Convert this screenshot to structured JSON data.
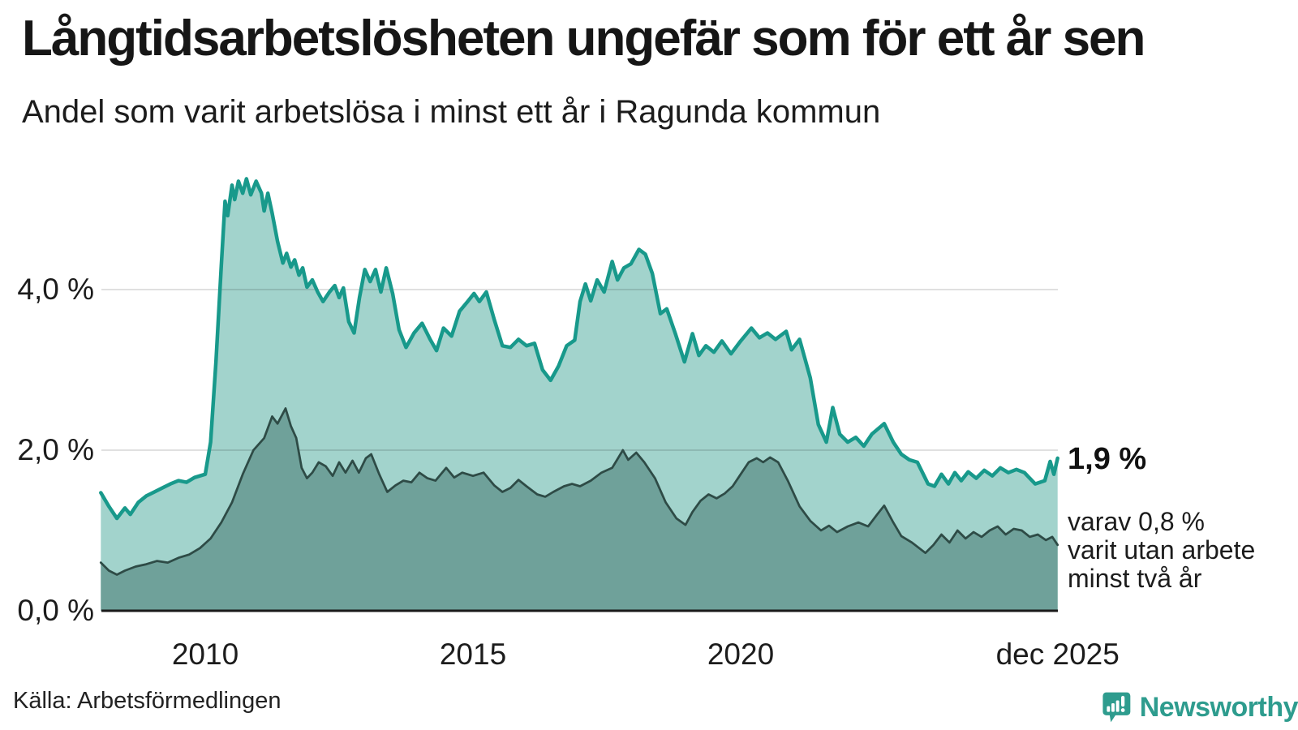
{
  "header": {
    "title": "Långtidsarbetslösheten ungefär som för ett år sen",
    "subtitle": "Andel som varit arbetslösa i minst ett år i Ragunda kommun"
  },
  "chart_data": {
    "type": "area",
    "title": "Långtidsarbetslösheten ungefär som för ett år sen",
    "subtitle": "Andel som varit arbetslösa i minst ett år i Ragunda kommun",
    "unit": "%",
    "x_axis": {
      "range": [
        2008.05,
        2025.92
      ],
      "ticks": [
        {
          "label": "2010",
          "t": 2010
        },
        {
          "label": "2015",
          "t": 2015
        },
        {
          "label": "2020",
          "t": 2020
        },
        {
          "label": "dec 2025",
          "t": 2025.92
        }
      ]
    },
    "y_axis": {
      "range": [
        0,
        5.6
      ],
      "grid": true,
      "ticks": [
        {
          "label": "0,0 %",
          "value": 0
        },
        {
          "label": "2,0 %",
          "value": 2
        },
        {
          "label": "4,0 %",
          "value": 4
        }
      ]
    },
    "series": [
      {
        "name": "Andel som varit arbetslösa i minst ett år",
        "fill": "#a2d3cc",
        "stroke": "#18998b",
        "stroke_width": 4.5,
        "latest_value": 1.9,
        "points": [
          [
            2008.05,
            1.47
          ],
          [
            2008.2,
            1.3
          ],
          [
            2008.35,
            1.15
          ],
          [
            2008.5,
            1.28
          ],
          [
            2008.6,
            1.2
          ],
          [
            2008.75,
            1.35
          ],
          [
            2008.9,
            1.43
          ],
          [
            2009.05,
            1.48
          ],
          [
            2009.2,
            1.53
          ],
          [
            2009.35,
            1.58
          ],
          [
            2009.5,
            1.62
          ],
          [
            2009.65,
            1.6
          ],
          [
            2009.8,
            1.66
          ],
          [
            2010.0,
            1.7
          ],
          [
            2010.1,
            2.1
          ],
          [
            2010.2,
            3.1
          ],
          [
            2010.3,
            4.3
          ],
          [
            2010.37,
            5.1
          ],
          [
            2010.42,
            4.92
          ],
          [
            2010.5,
            5.3
          ],
          [
            2010.55,
            5.12
          ],
          [
            2010.62,
            5.35
          ],
          [
            2010.7,
            5.2
          ],
          [
            2010.77,
            5.38
          ],
          [
            2010.85,
            5.18
          ],
          [
            2010.95,
            5.35
          ],
          [
            2011.05,
            5.2
          ],
          [
            2011.1,
            4.98
          ],
          [
            2011.17,
            5.2
          ],
          [
            2011.25,
            4.95
          ],
          [
            2011.35,
            4.6
          ],
          [
            2011.45,
            4.33
          ],
          [
            2011.52,
            4.45
          ],
          [
            2011.6,
            4.28
          ],
          [
            2011.67,
            4.37
          ],
          [
            2011.75,
            4.18
          ],
          [
            2011.82,
            4.27
          ],
          [
            2011.9,
            4.03
          ],
          [
            2012.0,
            4.12
          ],
          [
            2012.1,
            3.97
          ],
          [
            2012.2,
            3.85
          ],
          [
            2012.32,
            3.97
          ],
          [
            2012.42,
            4.05
          ],
          [
            2012.5,
            3.9
          ],
          [
            2012.58,
            4.02
          ],
          [
            2012.68,
            3.6
          ],
          [
            2012.78,
            3.46
          ],
          [
            2012.88,
            3.9
          ],
          [
            2012.98,
            4.25
          ],
          [
            2013.08,
            4.1
          ],
          [
            2013.18,
            4.25
          ],
          [
            2013.28,
            3.97
          ],
          [
            2013.38,
            4.27
          ],
          [
            2013.5,
            3.95
          ],
          [
            2013.62,
            3.5
          ],
          [
            2013.75,
            3.28
          ],
          [
            2013.9,
            3.46
          ],
          [
            2014.05,
            3.58
          ],
          [
            2014.2,
            3.38
          ],
          [
            2014.32,
            3.24
          ],
          [
            2014.45,
            3.52
          ],
          [
            2014.6,
            3.42
          ],
          [
            2014.75,
            3.73
          ],
          [
            2014.9,
            3.85
          ],
          [
            2015.02,
            3.95
          ],
          [
            2015.12,
            3.85
          ],
          [
            2015.25,
            3.97
          ],
          [
            2015.4,
            3.62
          ],
          [
            2015.55,
            3.3
          ],
          [
            2015.7,
            3.28
          ],
          [
            2015.85,
            3.38
          ],
          [
            2016.0,
            3.3
          ],
          [
            2016.15,
            3.33
          ],
          [
            2016.3,
            3.0
          ],
          [
            2016.45,
            2.87
          ],
          [
            2016.6,
            3.05
          ],
          [
            2016.75,
            3.3
          ],
          [
            2016.9,
            3.37
          ],
          [
            2017.0,
            3.85
          ],
          [
            2017.1,
            4.07
          ],
          [
            2017.2,
            3.86
          ],
          [
            2017.32,
            4.12
          ],
          [
            2017.45,
            3.97
          ],
          [
            2017.6,
            4.35
          ],
          [
            2017.7,
            4.12
          ],
          [
            2017.82,
            4.27
          ],
          [
            2017.95,
            4.32
          ],
          [
            2018.1,
            4.5
          ],
          [
            2018.22,
            4.44
          ],
          [
            2018.35,
            4.2
          ],
          [
            2018.5,
            3.7
          ],
          [
            2018.62,
            3.76
          ],
          [
            2018.78,
            3.45
          ],
          [
            2018.95,
            3.1
          ],
          [
            2019.1,
            3.45
          ],
          [
            2019.22,
            3.18
          ],
          [
            2019.35,
            3.3
          ],
          [
            2019.5,
            3.22
          ],
          [
            2019.65,
            3.36
          ],
          [
            2019.82,
            3.2
          ],
          [
            2020.0,
            3.36
          ],
          [
            2020.2,
            3.52
          ],
          [
            2020.35,
            3.4
          ],
          [
            2020.5,
            3.46
          ],
          [
            2020.65,
            3.38
          ],
          [
            2020.85,
            3.48
          ],
          [
            2020.95,
            3.25
          ],
          [
            2021.1,
            3.38
          ],
          [
            2021.3,
            2.9
          ],
          [
            2021.45,
            2.32
          ],
          [
            2021.6,
            2.1
          ],
          [
            2021.72,
            2.53
          ],
          [
            2021.85,
            2.2
          ],
          [
            2022.0,
            2.1
          ],
          [
            2022.15,
            2.16
          ],
          [
            2022.3,
            2.05
          ],
          [
            2022.45,
            2.2
          ],
          [
            2022.68,
            2.33
          ],
          [
            2022.85,
            2.1
          ],
          [
            2023.0,
            1.95
          ],
          [
            2023.15,
            1.88
          ],
          [
            2023.3,
            1.85
          ],
          [
            2023.5,
            1.58
          ],
          [
            2023.62,
            1.55
          ],
          [
            2023.75,
            1.7
          ],
          [
            2023.88,
            1.58
          ],
          [
            2024.0,
            1.72
          ],
          [
            2024.12,
            1.62
          ],
          [
            2024.25,
            1.73
          ],
          [
            2024.4,
            1.65
          ],
          [
            2024.55,
            1.75
          ],
          [
            2024.7,
            1.68
          ],
          [
            2024.85,
            1.78
          ],
          [
            2025.0,
            1.72
          ],
          [
            2025.15,
            1.76
          ],
          [
            2025.3,
            1.72
          ],
          [
            2025.5,
            1.58
          ],
          [
            2025.68,
            1.62
          ],
          [
            2025.78,
            1.86
          ],
          [
            2025.85,
            1.7
          ],
          [
            2025.92,
            1.9
          ]
        ]
      },
      {
        "name": "varav varit utan arbete minst två år",
        "fill": "#6fa19a",
        "stroke": "#2e4b46",
        "stroke_width": 2.75,
        "latest_value": 0.8,
        "points": [
          [
            2008.05,
            0.6
          ],
          [
            2008.2,
            0.5
          ],
          [
            2008.35,
            0.45
          ],
          [
            2008.5,
            0.5
          ],
          [
            2008.7,
            0.55
          ],
          [
            2008.9,
            0.58
          ],
          [
            2009.1,
            0.62
          ],
          [
            2009.3,
            0.6
          ],
          [
            2009.5,
            0.66
          ],
          [
            2009.7,
            0.7
          ],
          [
            2009.9,
            0.78
          ],
          [
            2010.1,
            0.9
          ],
          [
            2010.3,
            1.1
          ],
          [
            2010.5,
            1.35
          ],
          [
            2010.7,
            1.7
          ],
          [
            2010.9,
            2.0
          ],
          [
            2011.1,
            2.15
          ],
          [
            2011.25,
            2.42
          ],
          [
            2011.35,
            2.33
          ],
          [
            2011.5,
            2.52
          ],
          [
            2011.6,
            2.3
          ],
          [
            2011.7,
            2.15
          ],
          [
            2011.8,
            1.78
          ],
          [
            2011.9,
            1.65
          ],
          [
            2012.0,
            1.72
          ],
          [
            2012.12,
            1.85
          ],
          [
            2012.25,
            1.8
          ],
          [
            2012.38,
            1.68
          ],
          [
            2012.5,
            1.85
          ],
          [
            2012.62,
            1.72
          ],
          [
            2012.75,
            1.87
          ],
          [
            2012.87,
            1.72
          ],
          [
            2013.0,
            1.9
          ],
          [
            2013.1,
            1.95
          ],
          [
            2013.25,
            1.7
          ],
          [
            2013.4,
            1.48
          ],
          [
            2013.55,
            1.56
          ],
          [
            2013.7,
            1.62
          ],
          [
            2013.85,
            1.6
          ],
          [
            2014.0,
            1.72
          ],
          [
            2014.15,
            1.65
          ],
          [
            2014.3,
            1.62
          ],
          [
            2014.5,
            1.78
          ],
          [
            2014.65,
            1.66
          ],
          [
            2014.8,
            1.72
          ],
          [
            2015.0,
            1.68
          ],
          [
            2015.2,
            1.72
          ],
          [
            2015.4,
            1.56
          ],
          [
            2015.55,
            1.48
          ],
          [
            2015.7,
            1.53
          ],
          [
            2015.85,
            1.63
          ],
          [
            2016.0,
            1.55
          ],
          [
            2016.2,
            1.45
          ],
          [
            2016.35,
            1.42
          ],
          [
            2016.5,
            1.48
          ],
          [
            2016.7,
            1.55
          ],
          [
            2016.85,
            1.58
          ],
          [
            2017.0,
            1.55
          ],
          [
            2017.2,
            1.62
          ],
          [
            2017.4,
            1.72
          ],
          [
            2017.6,
            1.78
          ],
          [
            2017.8,
            2.0
          ],
          [
            2017.9,
            1.88
          ],
          [
            2018.05,
            1.97
          ],
          [
            2018.2,
            1.85
          ],
          [
            2018.4,
            1.65
          ],
          [
            2018.6,
            1.35
          ],
          [
            2018.8,
            1.15
          ],
          [
            2018.97,
            1.07
          ],
          [
            2019.1,
            1.23
          ],
          [
            2019.25,
            1.37
          ],
          [
            2019.4,
            1.45
          ],
          [
            2019.55,
            1.4
          ],
          [
            2019.7,
            1.46
          ],
          [
            2019.85,
            1.55
          ],
          [
            2020.0,
            1.7
          ],
          [
            2020.15,
            1.85
          ],
          [
            2020.3,
            1.9
          ],
          [
            2020.42,
            1.85
          ],
          [
            2020.55,
            1.91
          ],
          [
            2020.7,
            1.85
          ],
          [
            2020.88,
            1.62
          ],
          [
            2021.1,
            1.3
          ],
          [
            2021.3,
            1.12
          ],
          [
            2021.5,
            1.0
          ],
          [
            2021.65,
            1.06
          ],
          [
            2021.8,
            0.98
          ],
          [
            2022.0,
            1.05
          ],
          [
            2022.2,
            1.1
          ],
          [
            2022.38,
            1.05
          ],
          [
            2022.55,
            1.2
          ],
          [
            2022.68,
            1.31
          ],
          [
            2022.85,
            1.1
          ],
          [
            2023.0,
            0.93
          ],
          [
            2023.2,
            0.85
          ],
          [
            2023.45,
            0.72
          ],
          [
            2023.6,
            0.82
          ],
          [
            2023.75,
            0.95
          ],
          [
            2023.9,
            0.85
          ],
          [
            2024.05,
            1.0
          ],
          [
            2024.2,
            0.9
          ],
          [
            2024.35,
            0.98
          ],
          [
            2024.5,
            0.92
          ],
          [
            2024.65,
            1.0
          ],
          [
            2024.8,
            1.05
          ],
          [
            2024.95,
            0.95
          ],
          [
            2025.1,
            1.02
          ],
          [
            2025.25,
            1.0
          ],
          [
            2025.4,
            0.92
          ],
          [
            2025.55,
            0.95
          ],
          [
            2025.7,
            0.88
          ],
          [
            2025.82,
            0.92
          ],
          [
            2025.92,
            0.82
          ]
        ]
      }
    ],
    "annotations": {
      "latest_value_label": "1,9 %",
      "secondary_label_lines": [
        "varav 0,8 %",
        "varit utan arbete",
        "minst två år"
      ]
    },
    "colors": {
      "grid": "#e0e0e0",
      "axis": "#1a1a1a"
    },
    "legend": "none"
  },
  "footer": {
    "source": "Källa: Arbetsförmedlingen",
    "brand": "Newsworthy",
    "brand_color": "#2e9c8e"
  }
}
